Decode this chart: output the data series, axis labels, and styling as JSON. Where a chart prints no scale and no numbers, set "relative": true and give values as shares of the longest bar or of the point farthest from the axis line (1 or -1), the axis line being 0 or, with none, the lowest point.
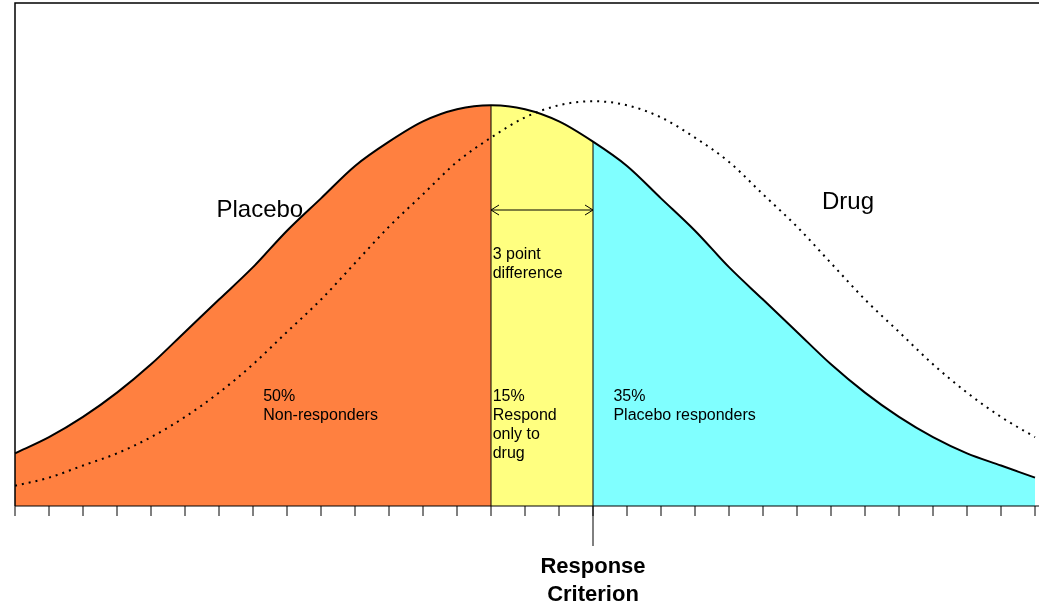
{
  "chart_data": {
    "type": "area",
    "relative": true,
    "xlabel": "Response\nCriterion",
    "categories": [
      null,
      null,
      null,
      null,
      null,
      null,
      null,
      null,
      null,
      null,
      null,
      null,
      null,
      null,
      null,
      null,
      null,
      null,
      null,
      null,
      null,
      null,
      null,
      null,
      null,
      null,
      null,
      null,
      null,
      null,
      null
    ],
    "series": [
      {
        "type": "area",
        "color": "#ff8040",
        "values": [
          0.13,
          0.17,
          0.22,
          0.28,
          0.35,
          0.43,
          0.51,
          0.59,
          0.68,
          0.76,
          0.84,
          0.9,
          0.95,
          0.98,
          0.99,
          null,
          null,
          null,
          null,
          null,
          null,
          null,
          null,
          null,
          null,
          null,
          null,
          null,
          null,
          null,
          null
        ]
      },
      {
        "type": "area",
        "color": "#ffff80",
        "values": [
          null,
          null,
          null,
          null,
          null,
          null,
          null,
          null,
          null,
          null,
          null,
          null,
          null,
          null,
          0.99,
          0.98,
          0.95,
          0.9,
          null,
          null,
          null,
          null,
          null,
          null,
          null,
          null,
          null,
          null,
          null,
          null,
          null
        ]
      },
      {
        "type": "area",
        "color": "#80ffff",
        "values": [
          null,
          null,
          null,
          null,
          null,
          null,
          null,
          null,
          null,
          null,
          null,
          null,
          null,
          null,
          null,
          null,
          null,
          0.9,
          0.84,
          0.76,
          0.68,
          0.59,
          0.51,
          0.43,
          0.35,
          0.28,
          0.22,
          0.17,
          0.13,
          0.1,
          0.07
        ]
      },
      {
        "type": "line",
        "name": "Placebo",
        "color": "#000000",
        "line_style": "solid",
        "values": [
          0.13,
          0.17,
          0.22,
          0.28,
          0.35,
          0.43,
          0.51,
          0.59,
          0.68,
          0.76,
          0.84,
          0.9,
          0.95,
          0.98,
          0.99,
          0.98,
          0.95,
          0.9,
          0.84,
          0.76,
          0.68,
          0.59,
          0.51,
          0.43,
          0.35,
          0.28,
          0.22,
          0.17,
          0.13,
          0.1,
          0.07
        ]
      },
      {
        "type": "line",
        "name": "Drug",
        "color": "#000000",
        "line_style": "dotted",
        "values": [
          0.05,
          0.07,
          0.1,
          0.13,
          0.17,
          0.22,
          0.28,
          0.35,
          0.43,
          0.51,
          0.6,
          0.69,
          0.77,
          0.85,
          0.91,
          0.96,
          0.99,
          1,
          0.99,
          0.96,
          0.91,
          0.85,
          0.77,
          0.69,
          0.6,
          0.51,
          0.43,
          0.35,
          0.28,
          0.22,
          0.17
        ]
      }
    ],
    "annotations": [
      "3 point\ndifference",
      "50%\nNon-responders",
      "15%\nRespond\nonly to\ndrug",
      "35%\nPlacebo responders"
    ],
    "tick_labels": false,
    "grid": false,
    "legend": false,
    "marker": "none"
  }
}
